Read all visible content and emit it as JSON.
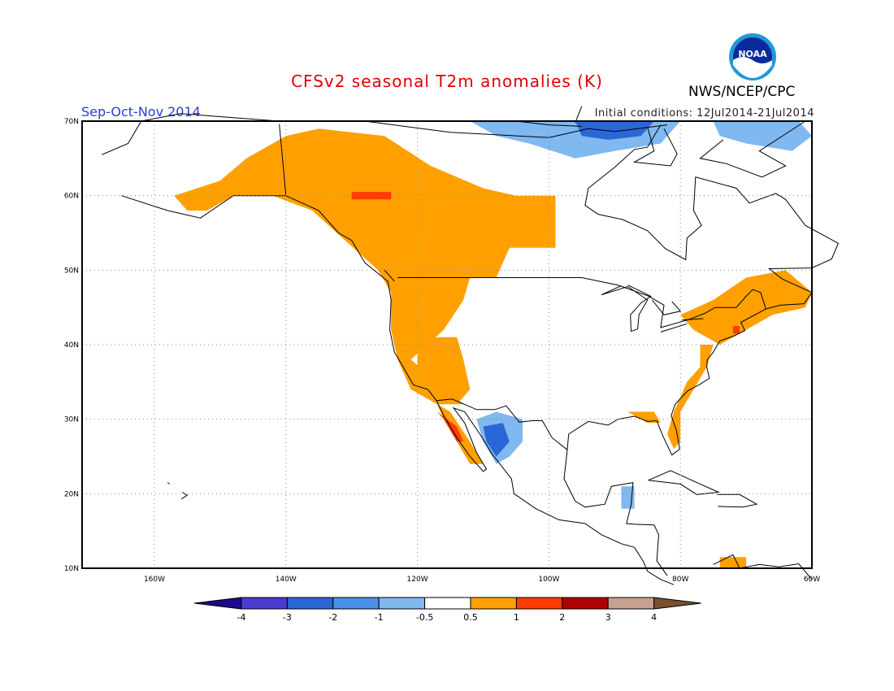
{
  "header": {
    "title": "CFSv2 seasonal T2m anomalies (K)",
    "period": "Sep-Oct-Nov 2014",
    "initial_conditions": "Initial conditions: 12Jul2014-21Jul2014",
    "agency": "NWS/NCEP/CPC",
    "logo_text": "NOAA"
  },
  "axes": {
    "lat_labels": [
      "70N",
      "60N",
      "50N",
      "40N",
      "30N",
      "20N",
      "10N"
    ],
    "lon_labels": [
      "160W",
      "140W",
      "120W",
      "100W",
      "80W",
      "60W"
    ],
    "lat_values": [
      70,
      60,
      50,
      40,
      30,
      20,
      10
    ],
    "lon_values": [
      -160,
      -140,
      -120,
      -100,
      -80,
      -60
    ],
    "lon_range": [
      -171,
      -60
    ],
    "lat_range": [
      10,
      70
    ]
  },
  "colorbar": {
    "tick_labels": [
      "-4",
      "-3",
      "-2",
      "-1",
      "-0.5",
      "0.5",
      "1",
      "2",
      "3",
      "4"
    ],
    "colors": [
      "#1c0a8c",
      "#4a3cd0",
      "#2a66d6",
      "#4a90e8",
      "#80b8f0",
      "#ffffff",
      "#ffa000",
      "#ff3c00",
      "#b00000",
      "#c8a090",
      "#7a5030"
    ]
  },
  "anomaly_regions": [
    {
      "name": "alaska-canada-west-warm",
      "level": 1,
      "poly": [
        [
          -155,
          58
        ],
        [
          -157,
          60
        ],
        [
          -150,
          62
        ],
        [
          -146,
          65
        ],
        [
          -140,
          68
        ],
        [
          -135,
          69
        ],
        [
          -125,
          68
        ],
        [
          -118,
          64
        ],
        [
          -110,
          61
        ],
        [
          -105,
          60
        ],
        [
          -99,
          60
        ],
        [
          -99,
          53
        ],
        [
          -106,
          53
        ],
        [
          -108,
          49
        ],
        [
          -112,
          49
        ],
        [
          -113,
          46
        ],
        [
          -116,
          42
        ],
        [
          -121,
          38
        ],
        [
          -117,
          35
        ],
        [
          -113,
          32
        ],
        [
          -117,
          32
        ],
        [
          -121,
          34
        ],
        [
          -123,
          38
        ],
        [
          -124,
          42
        ],
        [
          -124,
          47
        ],
        [
          -126,
          50
        ],
        [
          -131,
          54
        ],
        [
          -136,
          58
        ],
        [
          -142,
          60
        ],
        [
          -148,
          60
        ],
        [
          -152,
          58
        ]
      ]
    },
    {
      "name": "southwest-warm",
      "level": 1,
      "poly": [
        [
          -120,
          41
        ],
        [
          -114,
          41
        ],
        [
          -113,
          38
        ],
        [
          -112,
          34
        ],
        [
          -114,
          32
        ],
        [
          -116,
          33
        ],
        [
          -118,
          34
        ],
        [
          -120,
          36
        ]
      ]
    },
    {
      "name": "baja-warm",
      "level": 1,
      "poly": [
        [
          -117,
          32
        ],
        [
          -115,
          31
        ],
        [
          -112,
          27
        ],
        [
          -110,
          24
        ],
        [
          -112,
          24
        ],
        [
          -114,
          27
        ],
        [
          -116,
          30
        ]
      ]
    },
    {
      "name": "southeast-coast-warm",
      "level": 1,
      "poly": [
        [
          -77,
          40
        ],
        [
          -75,
          40
        ],
        [
          -76,
          37
        ],
        [
          -78,
          34
        ],
        [
          -80,
          31
        ],
        [
          -80,
          27
        ],
        [
          -81,
          26
        ],
        [
          -82,
          28
        ],
        [
          -81,
          31
        ],
        [
          -80,
          33
        ],
        [
          -79,
          35
        ],
        [
          -77,
          37
        ]
      ]
    },
    {
      "name": "northeast-warm",
      "level": 1,
      "poly": [
        [
          -80,
          44
        ],
        [
          -75,
          46
        ],
        [
          -70,
          49
        ],
        [
          -64,
          50
        ],
        [
          -60,
          47
        ],
        [
          -61,
          45
        ],
        [
          -66,
          44
        ],
        [
          -70,
          42
        ],
        [
          -74,
          40
        ],
        [
          -78,
          42
        ]
      ]
    },
    {
      "name": "gulf-coast-warm",
      "level": 1,
      "poly": [
        [
          -88,
          31
        ],
        [
          -84,
          31
        ],
        [
          -83,
          29.5
        ],
        [
          -85,
          29.5
        ]
      ]
    },
    {
      "name": "caribbean-warm",
      "level": 1,
      "poly": [
        [
          -74,
          11.5
        ],
        [
          -70,
          11.5
        ],
        [
          -70,
          10
        ],
        [
          -74,
          10
        ]
      ]
    },
    {
      "name": "yukon-hot-spot",
      "level": 2,
      "poly": [
        [
          -130,
          60.5
        ],
        [
          -124,
          60.5
        ],
        [
          -124,
          59.5
        ],
        [
          -130,
          59.5
        ]
      ]
    },
    {
      "name": "baja-hot-spot",
      "level": 2,
      "poly": [
        [
          -117,
          31
        ],
        [
          -114,
          29
        ],
        [
          -113,
          27
        ],
        [
          -114,
          27
        ],
        [
          -116,
          30
        ]
      ]
    },
    {
      "name": "new-england-hot-spot",
      "level": 2,
      "poly": [
        [
          -72,
          42.5
        ],
        [
          -71,
          42.5
        ],
        [
          -71,
          41.5
        ],
        [
          -72,
          41.5
        ]
      ]
    },
    {
      "name": "arctic-cool",
      "level": -1,
      "poly": [
        [
          -112,
          70
        ],
        [
          -80,
          70
        ],
        [
          -83,
          67
        ],
        [
          -90,
          66
        ],
        [
          -96,
          65
        ],
        [
          -103,
          67
        ],
        [
          -108,
          68
        ]
      ]
    },
    {
      "name": "arctic-cool-core",
      "level": -2,
      "poly": [
        [
          -96,
          70
        ],
        [
          -84,
          70
        ],
        [
          -86,
          68
        ],
        [
          -91,
          67.5
        ],
        [
          -95,
          68
        ]
      ]
    },
    {
      "name": "greenland-cool",
      "level": -1,
      "poly": [
        [
          -75,
          70
        ],
        [
          -62,
          70
        ],
        [
          -60,
          68
        ],
        [
          -63,
          66
        ],
        [
          -70,
          67
        ],
        [
          -74,
          68
        ]
      ]
    },
    {
      "name": "mexico-cool",
      "level": -1,
      "poly": [
        [
          -111,
          30
        ],
        [
          -108,
          31
        ],
        [
          -104,
          30
        ],
        [
          -104,
          27
        ],
        [
          -106,
          25
        ],
        [
          -108,
          24
        ],
        [
          -110,
          27
        ]
      ]
    },
    {
      "name": "mexico-cool-core",
      "level": -2,
      "poly": [
        [
          -110,
          29
        ],
        [
          -107,
          29.5
        ],
        [
          -106,
          27
        ],
        [
          -108,
          25
        ],
        [
          -109.5,
          27
        ]
      ]
    },
    {
      "name": "yucatan-cool",
      "level": -1,
      "poly": [
        [
          -89,
          21
        ],
        [
          -87,
          21
        ],
        [
          -87,
          18
        ],
        [
          -89,
          18
        ]
      ]
    }
  ]
}
